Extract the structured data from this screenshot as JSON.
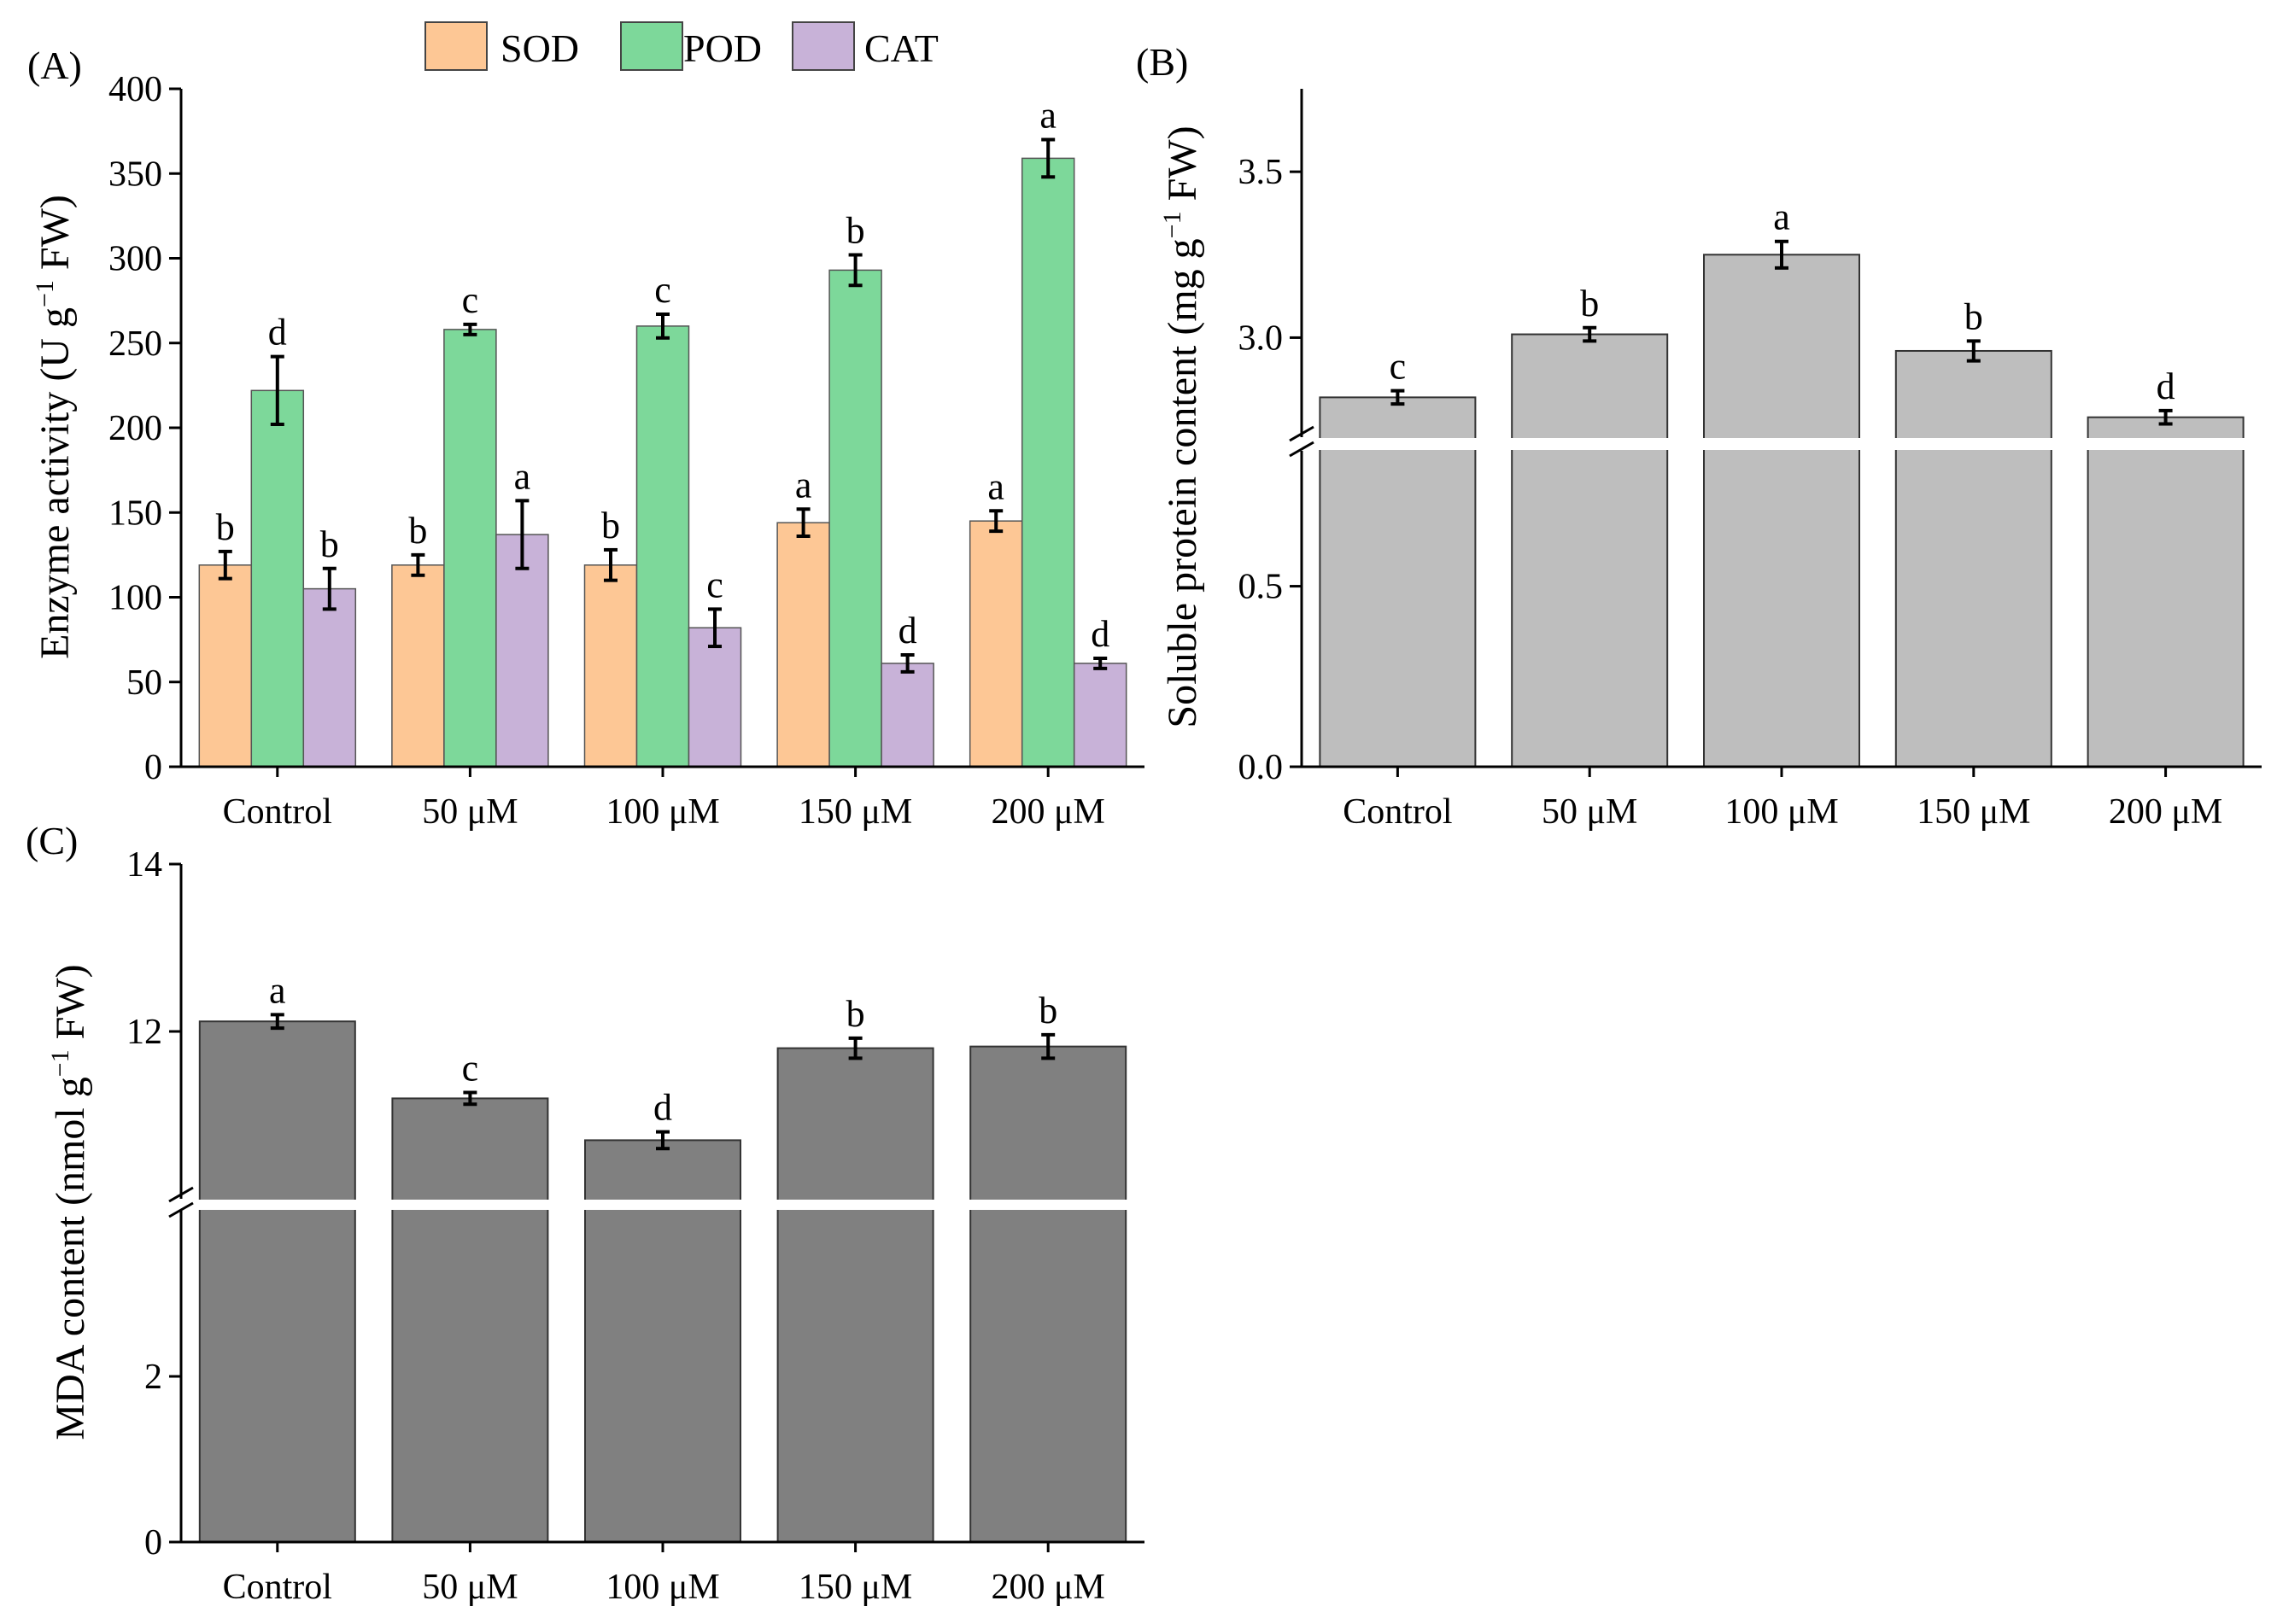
{
  "chart_data": [
    {
      "panel": "(A)",
      "type": "bar",
      "ylabel": {
        "pre": "Enzyme activity (U g",
        "sup": "−1",
        "post": " FW)"
      },
      "ylim": [
        0,
        400
      ],
      "yticks": [
        0,
        50,
        100,
        150,
        200,
        250,
        300,
        350,
        400
      ],
      "categories": [
        "Control",
        "50 μM",
        "100 μM",
        "150 μM",
        "200 μM"
      ],
      "legend": {
        "position": "top"
      },
      "series": [
        {
          "name": "SOD",
          "color": "#FDC795",
          "values": [
            119,
            119,
            119,
            144,
            145
          ],
          "errors": [
            8,
            6,
            9,
            8,
            6
          ],
          "letters": [
            "b",
            "b",
            "b",
            "a",
            "a"
          ]
        },
        {
          "name": "POD",
          "color": "#7DD89A",
          "values": [
            222,
            258,
            260,
            293,
            359
          ],
          "errors": [
            20,
            3,
            7,
            9,
            11
          ],
          "letters": [
            "d",
            "c",
            "c",
            "b",
            "a"
          ]
        },
        {
          "name": "CAT",
          "color": "#C8B2D8",
          "values": [
            105,
            137,
            82,
            61,
            61
          ],
          "errors": [
            12,
            20,
            11,
            5,
            3
          ],
          "letters": [
            "b",
            "a",
            "c",
            "d",
            "d"
          ]
        }
      ]
    },
    {
      "panel": "(B)",
      "type": "bar",
      "ylabel": {
        "pre": "Soluble protein content (mg g",
        "sup": "−1",
        "post": " FW)"
      },
      "axis_break": [
        1.0,
        2.7
      ],
      "ylim": [
        0,
        3.75
      ],
      "yticks": [
        0.0,
        0.5,
        3.0,
        3.5
      ],
      "ytick_labels": [
        "0.0",
        "0.5",
        "3.0",
        "3.5"
      ],
      "categories": [
        "Control",
        "50 μM",
        "100 μM",
        "150 μM",
        "200 μM"
      ],
      "color": "#BEBEBE",
      "values": [
        2.82,
        3.01,
        3.25,
        2.96,
        2.76
      ],
      "errors": [
        0.02,
        0.02,
        0.04,
        0.03,
        0.02
      ],
      "letters": [
        "c",
        "b",
        "a",
        "b",
        "d"
      ]
    },
    {
      "panel": "(C)",
      "type": "bar",
      "ylabel": {
        "pre": "MDA content (nmol g",
        "sup": "−1",
        "post": " FW)"
      },
      "axis_break": [
        4.0,
        10.0
      ],
      "ylim": [
        0,
        14
      ],
      "yticks": [
        0,
        2,
        12,
        14
      ],
      "ytick_labels": [
        "0",
        "2",
        "12",
        "14"
      ],
      "categories": [
        "Control",
        "50 μM",
        "100 μM",
        "150 μM",
        "200 μM"
      ],
      "color": "#808080",
      "values": [
        12.12,
        11.2,
        10.7,
        11.8,
        11.82
      ],
      "errors": [
        0.08,
        0.07,
        0.1,
        0.12,
        0.14
      ],
      "letters": [
        "a",
        "c",
        "d",
        "b",
        "b"
      ]
    }
  ]
}
